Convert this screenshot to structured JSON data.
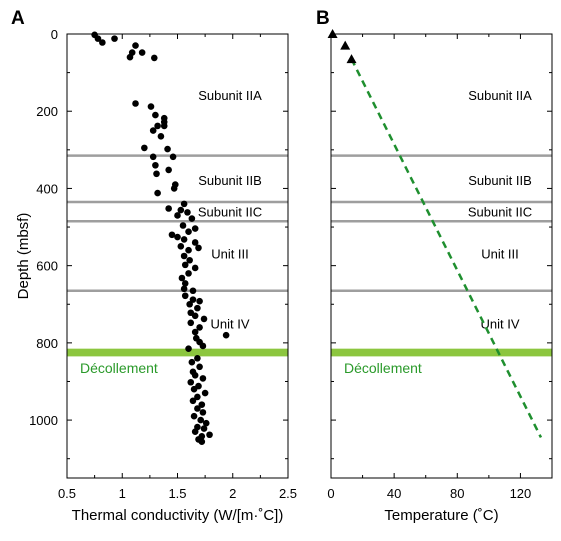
{
  "colors": {
    "boundary": "#9e9e9e",
    "decollement": "#8cc63f",
    "decollement_text": "#2a9a2a",
    "dashed_line": "#1f8f2f",
    "marker": "#000000"
  },
  "labels": {
    "panel_a": "A",
    "panel_b": "B",
    "ylabel": "Depth (mbsf)",
    "xlabel_a": "Thermal conductivity (W/[m·˚C])",
    "xlabel_b": "Temperature (˚C)",
    "decollement": "Décollement",
    "units": [
      "Subunit IIA",
      "Subunit IIB",
      "Subunit IIC",
      "Unit III",
      "Unit IV"
    ]
  },
  "chart_data": [
    {
      "type": "scatter",
      "panel": "A",
      "xlabel": "Thermal conductivity (W/[m·˚C])",
      "ylabel": "Depth (mbsf)",
      "xlim": [
        0.5,
        2.5
      ],
      "ylim": [
        1150,
        0
      ],
      "xticks": [
        0.5,
        1,
        1.5,
        2,
        2.5
      ],
      "xtick_labels": [
        "0.5",
        "1",
        "1.5",
        "2",
        "2.5"
      ],
      "yticks": [
        0,
        200,
        400,
        600,
        800,
        1000
      ],
      "ytick_labels": [
        "0",
        "200",
        "400",
        "600",
        "800",
        "1000"
      ],
      "boundaries": [
        315,
        435,
        485,
        665
      ],
      "decollement": [
        815,
        835
      ],
      "unit_labels": [
        {
          "text": "Subunit IIA",
          "depth": 158
        },
        {
          "text": "Subunit IIB",
          "depth": 378
        },
        {
          "text": "Subunit IIC",
          "depth": 460
        },
        {
          "text": "Unit III",
          "depth": 568
        },
        {
          "text": "Unit IV",
          "depth": 750
        }
      ],
      "decollement_label_depth": 865,
      "points": [
        {
          "x": 0.75,
          "y": 2
        },
        {
          "x": 0.78,
          "y": 12
        },
        {
          "x": 0.82,
          "y": 22
        },
        {
          "x": 0.93,
          "y": 12
        },
        {
          "x": 1.12,
          "y": 30
        },
        {
          "x": 1.09,
          "y": 48
        },
        {
          "x": 1.18,
          "y": 48
        },
        {
          "x": 1.07,
          "y": 60
        },
        {
          "x": 1.29,
          "y": 62
        },
        {
          "x": 1.12,
          "y": 180
        },
        {
          "x": 1.26,
          "y": 188
        },
        {
          "x": 1.3,
          "y": 210
        },
        {
          "x": 1.38,
          "y": 218
        },
        {
          "x": 1.38,
          "y": 228
        },
        {
          "x": 1.32,
          "y": 238
        },
        {
          "x": 1.38,
          "y": 238
        },
        {
          "x": 1.28,
          "y": 250
        },
        {
          "x": 1.35,
          "y": 265
        },
        {
          "x": 1.2,
          "y": 295
        },
        {
          "x": 1.41,
          "y": 298
        },
        {
          "x": 1.28,
          "y": 318
        },
        {
          "x": 1.46,
          "y": 318
        },
        {
          "x": 1.3,
          "y": 340
        },
        {
          "x": 1.42,
          "y": 352
        },
        {
          "x": 1.31,
          "y": 362
        },
        {
          "x": 1.48,
          "y": 390
        },
        {
          "x": 1.47,
          "y": 400
        },
        {
          "x": 1.32,
          "y": 412
        },
        {
          "x": 1.56,
          "y": 440
        },
        {
          "x": 1.42,
          "y": 452
        },
        {
          "x": 1.53,
          "y": 456
        },
        {
          "x": 1.59,
          "y": 462
        },
        {
          "x": 1.5,
          "y": 470
        },
        {
          "x": 1.63,
          "y": 478
        },
        {
          "x": 1.55,
          "y": 496
        },
        {
          "x": 1.66,
          "y": 504
        },
        {
          "x": 1.6,
          "y": 512
        },
        {
          "x": 1.45,
          "y": 520
        },
        {
          "x": 1.5,
          "y": 526
        },
        {
          "x": 1.56,
          "y": 532
        },
        {
          "x": 1.66,
          "y": 540
        },
        {
          "x": 1.53,
          "y": 550
        },
        {
          "x": 1.69,
          "y": 554
        },
        {
          "x": 1.6,
          "y": 560
        },
        {
          "x": 1.56,
          "y": 575
        },
        {
          "x": 1.61,
          "y": 586
        },
        {
          "x": 1.57,
          "y": 598
        },
        {
          "x": 1.66,
          "y": 606
        },
        {
          "x": 1.6,
          "y": 620
        },
        {
          "x": 1.54,
          "y": 632
        },
        {
          "x": 1.57,
          "y": 646
        },
        {
          "x": 1.56,
          "y": 660
        },
        {
          "x": 1.64,
          "y": 665
        },
        {
          "x": 1.57,
          "y": 678
        },
        {
          "x": 1.64,
          "y": 688
        },
        {
          "x": 1.7,
          "y": 692
        },
        {
          "x": 1.61,
          "y": 700
        },
        {
          "x": 1.68,
          "y": 710
        },
        {
          "x": 1.62,
          "y": 722
        },
        {
          "x": 1.66,
          "y": 730
        },
        {
          "x": 1.74,
          "y": 738
        },
        {
          "x": 1.62,
          "y": 748
        },
        {
          "x": 1.7,
          "y": 760
        },
        {
          "x": 1.66,
          "y": 772
        },
        {
          "x": 1.94,
          "y": 780
        },
        {
          "x": 1.67,
          "y": 788
        },
        {
          "x": 1.7,
          "y": 798
        },
        {
          "x": 1.73,
          "y": 808
        },
        {
          "x": 1.6,
          "y": 815
        },
        {
          "x": 1.68,
          "y": 840
        },
        {
          "x": 1.63,
          "y": 850
        },
        {
          "x": 1.7,
          "y": 862
        },
        {
          "x": 1.64,
          "y": 875
        },
        {
          "x": 1.66,
          "y": 884
        },
        {
          "x": 1.73,
          "y": 892
        },
        {
          "x": 1.62,
          "y": 902
        },
        {
          "x": 1.69,
          "y": 912
        },
        {
          "x": 1.65,
          "y": 920
        },
        {
          "x": 1.75,
          "y": 930
        },
        {
          "x": 1.68,
          "y": 940
        },
        {
          "x": 1.64,
          "y": 950
        },
        {
          "x": 1.72,
          "y": 960
        },
        {
          "x": 1.68,
          "y": 970
        },
        {
          "x": 1.73,
          "y": 980
        },
        {
          "x": 1.65,
          "y": 990
        },
        {
          "x": 1.71,
          "y": 1000
        },
        {
          "x": 1.76,
          "y": 1008
        },
        {
          "x": 1.68,
          "y": 1018
        },
        {
          "x": 1.74,
          "y": 1022
        },
        {
          "x": 1.66,
          "y": 1030
        },
        {
          "x": 1.79,
          "y": 1038
        },
        {
          "x": 1.72,
          "y": 1042
        },
        {
          "x": 1.69,
          "y": 1050
        },
        {
          "x": 1.72,
          "y": 1056
        }
      ]
    },
    {
      "type": "scatter",
      "panel": "B",
      "xlabel": "Temperature (˚C)",
      "xlim": [
        0,
        140
      ],
      "ylim": [
        1150,
        0
      ],
      "xticks": [
        0,
        40,
        80,
        120
      ],
      "xtick_labels": [
        "0",
        "40",
        "80",
        "120"
      ],
      "boundaries": [
        315,
        435,
        485,
        665
      ],
      "decollement": [
        815,
        835
      ],
      "unit_labels": [
        {
          "text": "Subunit IIA",
          "depth": 158
        },
        {
          "text": "Subunit IIB",
          "depth": 378
        },
        {
          "text": "Subunit IIC",
          "depth": 460
        },
        {
          "text": "Unit III",
          "depth": 568
        },
        {
          "text": "Unit IV",
          "depth": 750
        }
      ],
      "decollement_label_depth": 865,
      "measured_points": [
        {
          "x": 1,
          "y": 0
        },
        {
          "x": 9,
          "y": 30
        },
        {
          "x": 13,
          "y": 65
        }
      ],
      "gradient_line": [
        {
          "x": 13,
          "y": 65
        },
        {
          "x": 133,
          "y": 1045
        }
      ]
    }
  ]
}
